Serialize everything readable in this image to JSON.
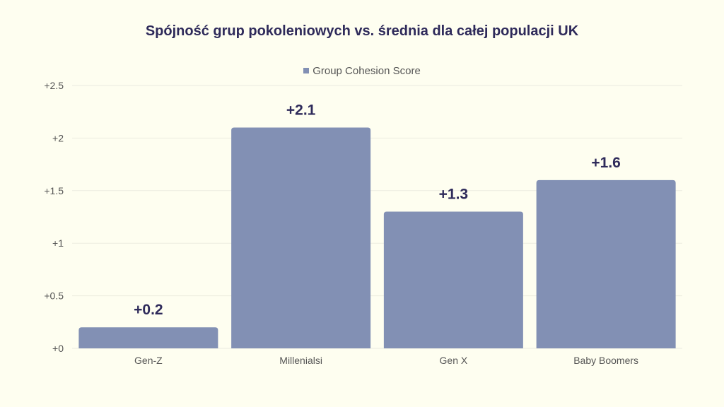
{
  "chart_data": {
    "type": "bar",
    "title": "Spójność grup pokoleniowych vs. średnia dla całej populacji UK",
    "categories": [
      "Gen-Z",
      "Millenialsi",
      "Gen X",
      "Baby Boomers"
    ],
    "series": [
      {
        "name": "Group Cohesion Score",
        "values": [
          0.2,
          2.1,
          1.3,
          1.6
        ]
      }
    ],
    "data_labels": [
      "+0.2",
      "+2.1",
      "+1.3",
      "+1.6"
    ],
    "yticks": [
      "+0",
      "+0.5",
      "+1",
      "+1.5",
      "+2",
      "+2.5"
    ],
    "ytick_values": [
      0,
      0.5,
      1,
      1.5,
      2,
      2.5
    ],
    "ylim": [
      0,
      2.5
    ],
    "xlabel": "",
    "ylabel": "",
    "grid": true,
    "legend": "top-center",
    "colors": {
      "bar": "#8290b4",
      "title": "#2e2a5a",
      "label": "#2e2a5a",
      "grid": "#ebebdf"
    }
  }
}
